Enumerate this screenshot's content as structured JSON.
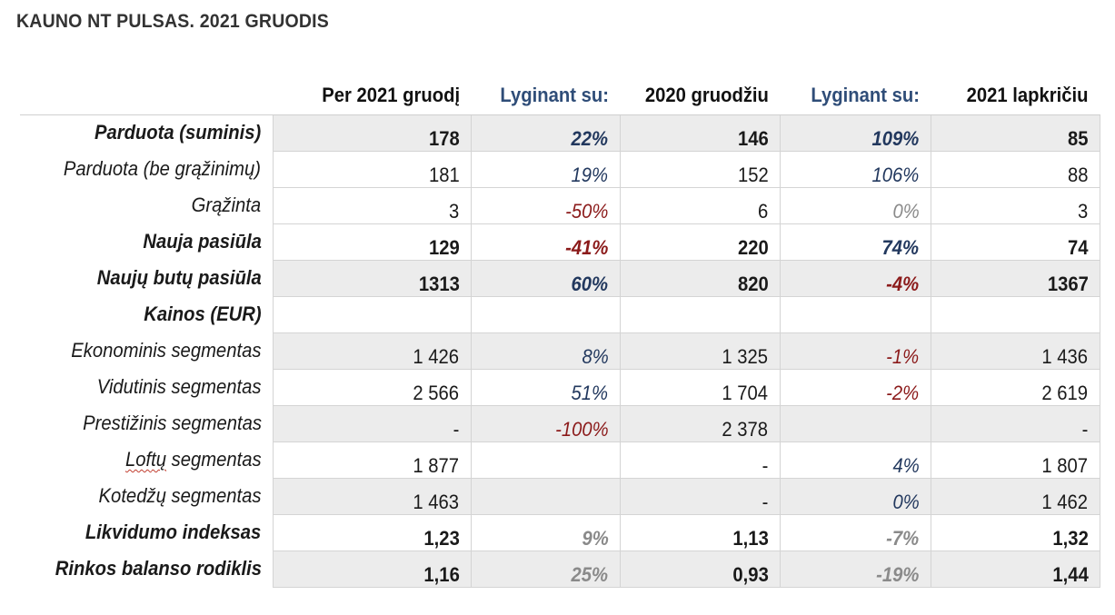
{
  "title": "KAUNO NT PULSAS. 2021 GRUODIS",
  "columns": [
    "Per 2021 gruodį",
    "Lyginant su:",
    "2020 gruodžiu",
    "Lyginant su:",
    "2021 lapkričiu"
  ],
  "rows": [
    {
      "label": "Parduota (suminis)",
      "bold": true,
      "shaded": true,
      "cells": [
        {
          "v": "178"
        },
        {
          "v": "22%",
          "tone": "pos"
        },
        {
          "v": "146"
        },
        {
          "v": "109%",
          "tone": "pos"
        },
        {
          "v": "85"
        }
      ]
    },
    {
      "label": "Parduota (be grąžinimų)",
      "bold": false,
      "shaded": false,
      "cells": [
        {
          "v": "181"
        },
        {
          "v": "19%",
          "tone": "pos"
        },
        {
          "v": "152"
        },
        {
          "v": "106%",
          "tone": "pos"
        },
        {
          "v": "88"
        }
      ]
    },
    {
      "label": "Grąžinta",
      "bold": false,
      "shaded": false,
      "cells": [
        {
          "v": "3"
        },
        {
          "v": "-50%",
          "tone": "neg"
        },
        {
          "v": "6"
        },
        {
          "v": "0%",
          "tone": "neutral"
        },
        {
          "v": "3"
        }
      ]
    },
    {
      "label": "Nauja pasiūla",
      "bold": true,
      "shaded": false,
      "cells": [
        {
          "v": "129"
        },
        {
          "v": "-41%",
          "tone": "neg"
        },
        {
          "v": "220"
        },
        {
          "v": "74%",
          "tone": "pos"
        },
        {
          "v": "74"
        }
      ]
    },
    {
      "label": "Naujų butų pasiūla",
      "bold": true,
      "shaded": true,
      "cells": [
        {
          "v": "1313"
        },
        {
          "v": "60%",
          "tone": "pos"
        },
        {
          "v": "820"
        },
        {
          "v": "-4%",
          "tone": "neg"
        },
        {
          "v": "1367"
        }
      ]
    },
    {
      "label": "Kainos (EUR)",
      "bold": true,
      "shaded": false,
      "cells": [
        {
          "v": ""
        },
        {
          "v": ""
        },
        {
          "v": ""
        },
        {
          "v": ""
        },
        {
          "v": ""
        }
      ]
    },
    {
      "label": "Ekonominis segmentas",
      "bold": false,
      "shaded": true,
      "cells": [
        {
          "v": "1 426"
        },
        {
          "v": "8%",
          "tone": "pos"
        },
        {
          "v": "1 325"
        },
        {
          "v": "-1%",
          "tone": "neg"
        },
        {
          "v": "1 436"
        }
      ]
    },
    {
      "label": "Vidutinis segmentas",
      "bold": false,
      "shaded": false,
      "cells": [
        {
          "v": "2 566"
        },
        {
          "v": "51%",
          "tone": "pos"
        },
        {
          "v": "1 704"
        },
        {
          "v": "-2%",
          "tone": "neg"
        },
        {
          "v": "2 619"
        }
      ]
    },
    {
      "label": "Prestižinis segmentas",
      "bold": false,
      "shaded": true,
      "cells": [
        {
          "v": "-"
        },
        {
          "v": "-100%",
          "tone": "neg"
        },
        {
          "v": "2 378"
        },
        {
          "v": ""
        },
        {
          "v": "-"
        }
      ]
    },
    {
      "label": "Loftų segmentas",
      "label_word": "Loftų",
      "label_rest": " segmentas",
      "bold": false,
      "shaded": false,
      "cells": [
        {
          "v": "1 877"
        },
        {
          "v": ""
        },
        {
          "v": "-"
        },
        {
          "v": "4%",
          "tone": "pos"
        },
        {
          "v": "1 807"
        }
      ]
    },
    {
      "label": "Kotedžų segmentas",
      "bold": false,
      "shaded": true,
      "cells": [
        {
          "v": "1 463"
        },
        {
          "v": ""
        },
        {
          "v": "-"
        },
        {
          "v": "0%",
          "tone": "pos"
        },
        {
          "v": "1 462"
        }
      ]
    },
    {
      "label": "Likvidumo indeksas",
      "bold": true,
      "shaded": false,
      "cells": [
        {
          "v": "1,23"
        },
        {
          "v": "9%",
          "tone": "neutral"
        },
        {
          "v": "1,13"
        },
        {
          "v": "-7%",
          "tone": "neutral"
        },
        {
          "v": "1,32"
        }
      ]
    },
    {
      "label": "Rinkos balanso rodiklis",
      "bold": true,
      "shaded": true,
      "cells": [
        {
          "v": "1,16"
        },
        {
          "v": "25%",
          "tone": "neutral"
        },
        {
          "v": "0,93"
        },
        {
          "v": "-19%",
          "tone": "neutral"
        },
        {
          "v": "1,44"
        }
      ]
    }
  ],
  "colors": {
    "positive": "#22385e",
    "negative": "#8b1a1a",
    "neutral": "#8a8a8a",
    "header_compare": "#2f4d78",
    "row_shade": "#ececec"
  }
}
